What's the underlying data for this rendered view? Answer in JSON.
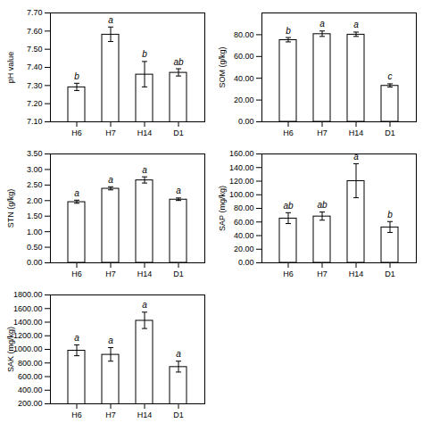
{
  "chart_data": [
    {
      "type": "bar",
      "categories": [
        "H6",
        "H7",
        "H14",
        "D1"
      ],
      "values": [
        7.29,
        7.58,
        7.36,
        7.37
      ],
      "errors": [
        0.02,
        0.04,
        0.07,
        0.02
      ],
      "annotations": [
        "b",
        "a",
        "b",
        "ab"
      ],
      "ylabel": "pH value",
      "color": "#ffffff",
      "grid": false,
      "ylim": [
        7.1,
        7.7
      ],
      "yticks": [
        {
          "value": 7.1,
          "label": "7.10"
        },
        {
          "value": 7.2,
          "label": "7.20"
        },
        {
          "value": 7.3,
          "label": "7.30"
        },
        {
          "value": 7.4,
          "label": "7.40"
        },
        {
          "value": 7.5,
          "label": "7.50"
        },
        {
          "value": 7.6,
          "label": "7.60"
        },
        {
          "value": 7.7,
          "label": "7.70"
        }
      ]
    },
    {
      "type": "bar",
      "categories": [
        "H6",
        "H7",
        "H14",
        "D1"
      ],
      "values": [
        75.0,
        80.5,
        80.0,
        33.0
      ],
      "errors": [
        2.0,
        2.5,
        2.0,
        1.5
      ],
      "annotations": [
        "b",
        "a",
        "a",
        "c"
      ],
      "ylabel": "SOM (g/kg)",
      "color": "#ffffff",
      "grid": false,
      "ylim": [
        0,
        100
      ],
      "yticks": [
        {
          "value": 0,
          "label": "0.00"
        },
        {
          "value": 20,
          "label": "20.00"
        },
        {
          "value": 40,
          "label": "40.00"
        },
        {
          "value": 60,
          "label": "60.00"
        },
        {
          "value": 80,
          "label": "80.00"
        }
      ]
    },
    {
      "type": "bar",
      "categories": [
        "H6",
        "H7",
        "H14",
        "D1"
      ],
      "values": [
        1.95,
        2.38,
        2.65,
        2.03
      ],
      "errors": [
        0.05,
        0.05,
        0.1,
        0.04
      ],
      "annotations": [
        "a",
        "a",
        "a",
        "a"
      ],
      "ylabel": "STN (g/kg)",
      "color": "#ffffff",
      "grid": false,
      "ylim": [
        0,
        3.5
      ],
      "yticks": [
        {
          "value": 0,
          "label": "0.00"
        },
        {
          "value": 0.5,
          "label": "0.50"
        },
        {
          "value": 1,
          "label": "1.00"
        },
        {
          "value": 1.5,
          "label": "1.50"
        },
        {
          "value": 2,
          "label": "2.00"
        },
        {
          "value": 2.5,
          "label": "2.50"
        },
        {
          "value": 3,
          "label": "3.00"
        },
        {
          "value": 3.5,
          "label": "3.50"
        }
      ]
    },
    {
      "type": "bar",
      "categories": [
        "H6",
        "H7",
        "H14",
        "D1"
      ],
      "values": [
        65.0,
        68.0,
        120.0,
        52.0
      ],
      "errors": [
        8.0,
        6.0,
        25.0,
        8.0
      ],
      "annotations": [
        "ab",
        "ab",
        "a",
        "b"
      ],
      "ylabel": "SAP (mg/kg)",
      "color": "#ffffff",
      "grid": false,
      "ylim": [
        0,
        160
      ],
      "yticks": [
        {
          "value": 0,
          "label": "0.00"
        },
        {
          "value": 20,
          "label": "20.00"
        },
        {
          "value": 40,
          "label": "40.00"
        },
        {
          "value": 60,
          "label": "60.00"
        },
        {
          "value": 80,
          "label": "80.00"
        },
        {
          "value": 100,
          "label": "100.00"
        },
        {
          "value": 120,
          "label": "120.00"
        },
        {
          "value": 140,
          "label": "140.00"
        },
        {
          "value": 160,
          "label": "160.00"
        }
      ]
    },
    {
      "type": "bar",
      "categories": [
        "H6",
        "H7",
        "H14",
        "D1"
      ],
      "values": [
        980.0,
        920.0,
        1420.0,
        740.0
      ],
      "errors": [
        80.0,
        100.0,
        120.0,
        80.0
      ],
      "annotations": [
        "a",
        "a",
        "a",
        "a"
      ],
      "ylabel": "SAK (mg/kg)",
      "color": "#ffffff",
      "grid": false,
      "ylim": [
        200,
        1800
      ],
      "yticks": [
        {
          "value": 200,
          "label": "200.00"
        },
        {
          "value": 400,
          "label": "400.00"
        },
        {
          "value": 600,
          "label": "600.00"
        },
        {
          "value": 800,
          "label": "800.00"
        },
        {
          "value": 1000,
          "label": "1000.00"
        },
        {
          "value": 1200,
          "label": "1200.00"
        },
        {
          "value": 1400,
          "label": "1400.00"
        },
        {
          "value": 1600,
          "label": "1600.00"
        },
        {
          "value": 1800,
          "label": "1800.00"
        }
      ]
    }
  ]
}
